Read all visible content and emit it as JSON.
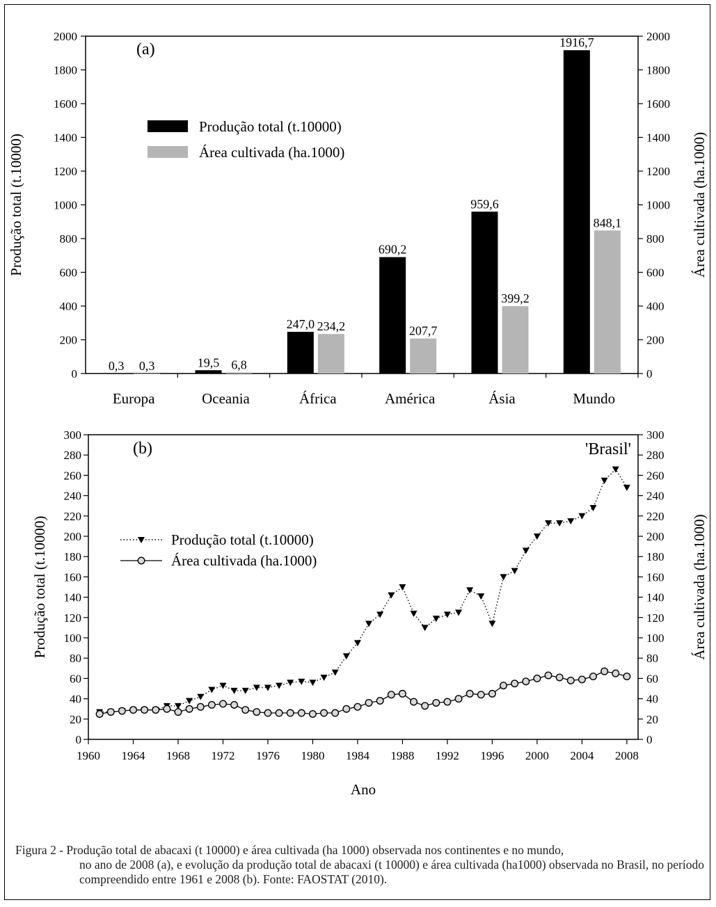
{
  "chart_data": [
    {
      "type": "bar",
      "panel_label": "(a)",
      "categories": [
        "Europa",
        "Oceania",
        "África",
        "América",
        "Ásia",
        "Mundo"
      ],
      "series": [
        {
          "name": "Produção total (t.10000)",
          "values": [
            0.3,
            19.5,
            247.0,
            690.2,
            959.6,
            1916.7
          ],
          "color": "#000000",
          "axis": "left",
          "labels": [
            "0,3",
            "19,5",
            "247,0",
            "690,2",
            "959,6",
            "1916,7"
          ]
        },
        {
          "name": "Área cultivada (ha.1000)",
          "values": [
            0.3,
            6.8,
            234.2,
            207.7,
            399.2,
            848.1
          ],
          "color": "#b5b5b5",
          "axis": "right",
          "labels": [
            "0,3",
            "6,8",
            "234,2",
            "207,7",
            "399,2",
            "848,1"
          ]
        }
      ],
      "ylabel": "Produção total (t.10000)",
      "ylabel_right": "Área cultivada (ha.1000)",
      "ylim": [
        0,
        2000
      ],
      "ylim_right": [
        0,
        2000
      ],
      "yticks": [
        "0",
        "200",
        "400",
        "600",
        "800",
        "1000",
        "1200",
        "1400",
        "1600",
        "1800",
        "2000"
      ],
      "legend_position": "upper-left"
    },
    {
      "type": "line",
      "panel_label": "(b)",
      "annotation": "'Brasil'",
      "x": [
        1961,
        1962,
        1963,
        1964,
        1965,
        1966,
        1967,
        1968,
        1969,
        1970,
        1971,
        1972,
        1973,
        1974,
        1975,
        1976,
        1977,
        1978,
        1979,
        1980,
        1981,
        1982,
        1983,
        1984,
        1985,
        1986,
        1987,
        1988,
        1989,
        1990,
        1991,
        1992,
        1993,
        1994,
        1995,
        1996,
        1997,
        1998,
        1999,
        2000,
        2001,
        2002,
        2003,
        2004,
        2005,
        2006,
        2007,
        2008
      ],
      "series": [
        {
          "name": "Produção total (t.10000)",
          "style": "dotted",
          "marker": "triangle-down",
          "values": [
            27,
            27,
            28,
            29,
            29,
            29,
            33,
            33,
            38,
            42,
            49,
            53,
            48,
            48,
            51,
            51,
            53,
            56,
            57,
            56,
            61,
            66,
            82,
            95,
            114,
            123,
            142,
            150,
            124,
            110,
            119,
            123,
            125,
            147,
            141,
            114,
            160,
            166,
            186,
            200,
            213,
            213,
            215,
            220,
            228,
            255,
            266,
            248
          ]
        },
        {
          "name": "Área cultivada (ha.1000)",
          "style": "solid",
          "marker": "circle-open",
          "values": [
            25,
            27,
            28,
            29,
            29,
            29,
            30,
            27,
            30,
            32,
            34,
            35,
            34,
            29,
            27,
            26,
            26,
            26,
            26,
            25,
            26,
            26,
            30,
            32,
            36,
            38,
            44,
            45,
            37,
            33,
            36,
            37,
            40,
            45,
            44,
            45,
            53,
            55,
            57,
            60,
            63,
            61,
            58,
            59,
            62,
            67,
            65,
            62
          ]
        }
      ],
      "xlabel": "Ano",
      "ylabel": "Produção total (t.10000)",
      "ylabel_right": "Área cultivada (ha.1000)",
      "xlim": [
        1960,
        2009
      ],
      "ylim": [
        0,
        300
      ],
      "ylim_right": [
        0,
        300
      ],
      "xticks": [
        1960,
        1964,
        1968,
        1972,
        1976,
        1980,
        1984,
        1988,
        1992,
        1996,
        2000,
        2004,
        2008
      ],
      "yticks": [
        0,
        20,
        40,
        60,
        80,
        100,
        120,
        140,
        160,
        180,
        200,
        220,
        240,
        260,
        280,
        300
      ],
      "legend_position": "middle-left"
    }
  ],
  "caption": {
    "lead": "Figura 2 - Produção total de abacaxi (t 10000) e área cultivada (ha 1000) observada nos continentes e no mundo,",
    "rest": "no ano de 2008 (a), e evolução da produção total de abacaxi (t 10000) e área cultivada (ha1000) observada no Brasil, no período compreendido entre 1961 e 2008 (b). Fonte: FAOSTAT (2010)."
  }
}
